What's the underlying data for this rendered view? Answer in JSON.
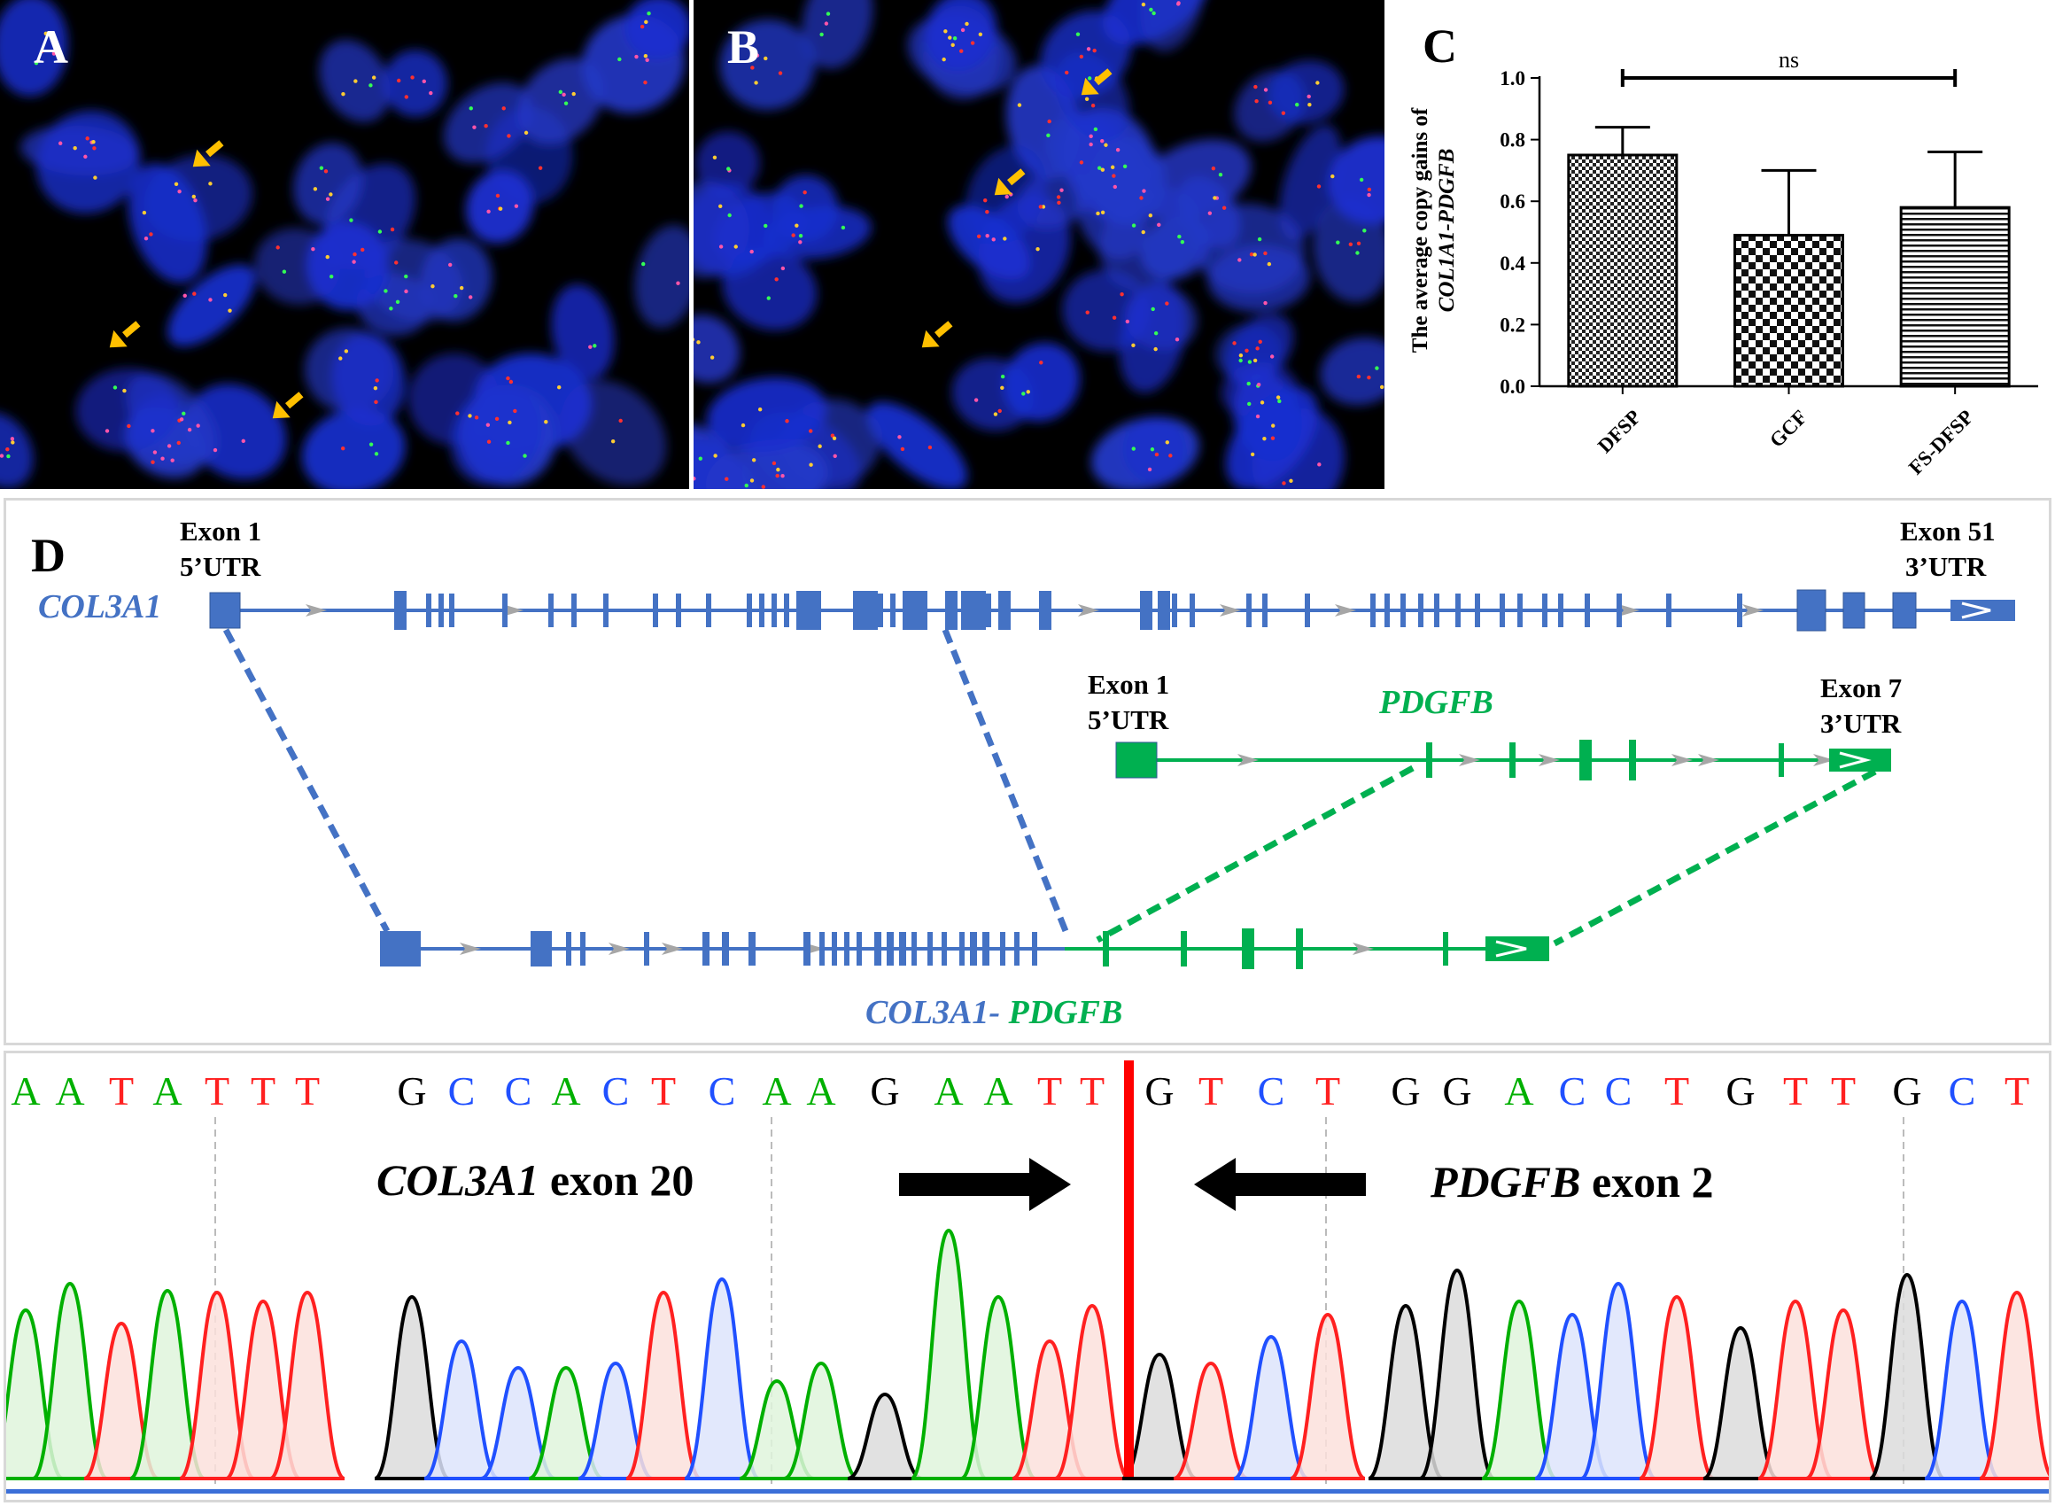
{
  "panel_a": {
    "letter": "A"
  },
  "panel_b": {
    "letter": "B"
  },
  "chart_data": {
    "type": "bar",
    "panel_letter": "C",
    "categories": [
      "DFSP",
      "GCF",
      "FS-DFSP"
    ],
    "values": [
      0.75,
      0.49,
      0.58
    ],
    "error_upper": [
      0.84,
      0.7,
      0.76
    ],
    "patterns": [
      "dense-check",
      "checkerboard",
      "horizontal-lines"
    ],
    "ylabel_line1": "The average copy gains of",
    "ylabel_line2": "COL1A1-PDGFB",
    "ylim": [
      0.0,
      1.0
    ],
    "yticks": [
      "0.0",
      "0.2",
      "0.4",
      "0.6",
      "0.8",
      "1.0"
    ],
    "significance": {
      "label": "ns",
      "from": "DFSP",
      "to": "FS-DFSP"
    },
    "grid": false
  },
  "panel_d": {
    "letter": "D",
    "col3a1": {
      "name": "COL3A1",
      "exon_first": "Exon 1",
      "utr_first": "5’UTR",
      "exon_last": "Exon 51",
      "utr_last": "3’UTR"
    },
    "pdgfb": {
      "name": "PDGFB",
      "exon_first": "Exon 1",
      "utr_first": "5’UTR",
      "exon_last": "Exon 7",
      "utr_last": "3’UTR"
    },
    "fusion": {
      "name_part1": "COL3A1-",
      "name_part2": " PDGFB"
    },
    "colors": {
      "col3a1": "#4472c4",
      "pdgfb": "#00b050",
      "intron_arrow": "#a6a6a6"
    }
  },
  "panel_e": {
    "bases": [
      "A",
      "A",
      "T",
      "A",
      "T",
      "T",
      "T",
      "G",
      "C",
      "C",
      "A",
      "C",
      "T",
      "C",
      "A",
      "A",
      "G",
      "A",
      "A",
      "T",
      "T",
      "G",
      "T",
      "C",
      "T",
      "G",
      "G",
      "A",
      "C",
      "C",
      "T",
      "G",
      "T",
      "T",
      "G",
      "C",
      "T"
    ],
    "left_label_italic": "COL3A1",
    "left_label_rest": " exon 20",
    "right_label_italic": "PDGFB",
    "right_label_rest": " exon 2",
    "breakpoint_color": "#ff0000",
    "base_colors": {
      "A": "#00b000",
      "C": "#2050ff",
      "G": "#000000",
      "T": "#ff2020"
    }
  }
}
